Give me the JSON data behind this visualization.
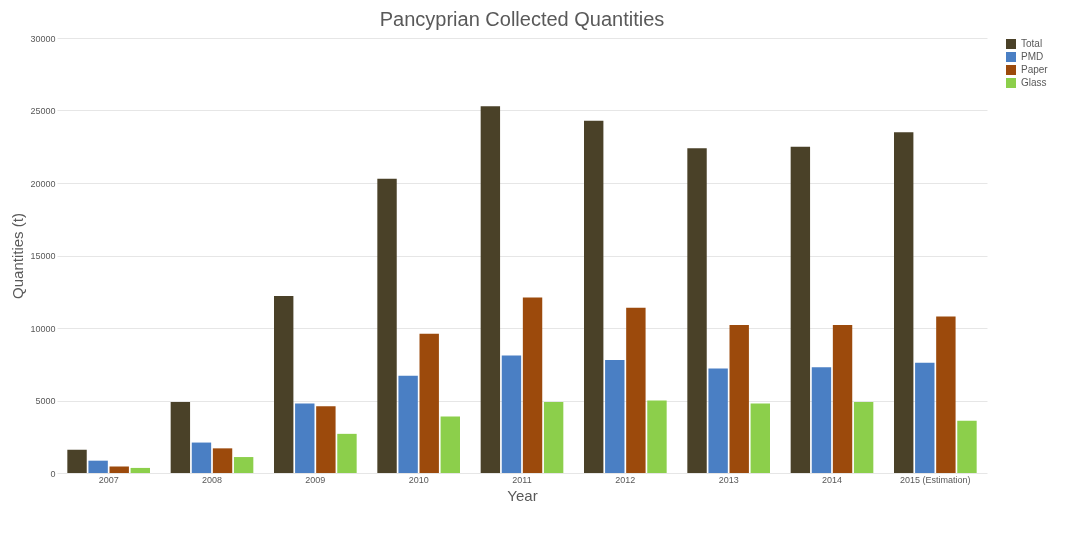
{
  "chart_data": {
    "type": "bar",
    "title": "Pancyprian Collected Quantities",
    "xlabel": "Year",
    "ylabel": "Quantities (t)",
    "categories": [
      "2007",
      "2008",
      "2009",
      "2010",
      "2011",
      "2012",
      "2013",
      "2014",
      "2015 (Estimation)"
    ],
    "series": [
      {
        "name": "Total",
        "color": "#4a4128",
        "values": [
          1600,
          4900,
          12200,
          20300,
          25300,
          24300,
          22400,
          22500,
          23500
        ]
      },
      {
        "name": "PMD",
        "color": "#4a7fc4",
        "values": [
          850,
          2100,
          4800,
          6700,
          8100,
          7800,
          7200,
          7300,
          7600
        ]
      },
      {
        "name": "Paper",
        "color": "#9c4a0c",
        "values": [
          450,
          1700,
          4600,
          9600,
          12100,
          11400,
          10200,
          10200,
          10800
        ]
      },
      {
        "name": "Glass",
        "color": "#8ccf4b",
        "values": [
          350,
          1100,
          2700,
          3900,
          4900,
          5000,
          4800,
          4900,
          3600
        ]
      }
    ],
    "ylim": [
      0,
      30000
    ],
    "yticks": [
      0,
      5000,
      10000,
      15000,
      20000,
      25000,
      30000
    ],
    "grid": "y",
    "legend": "right"
  }
}
